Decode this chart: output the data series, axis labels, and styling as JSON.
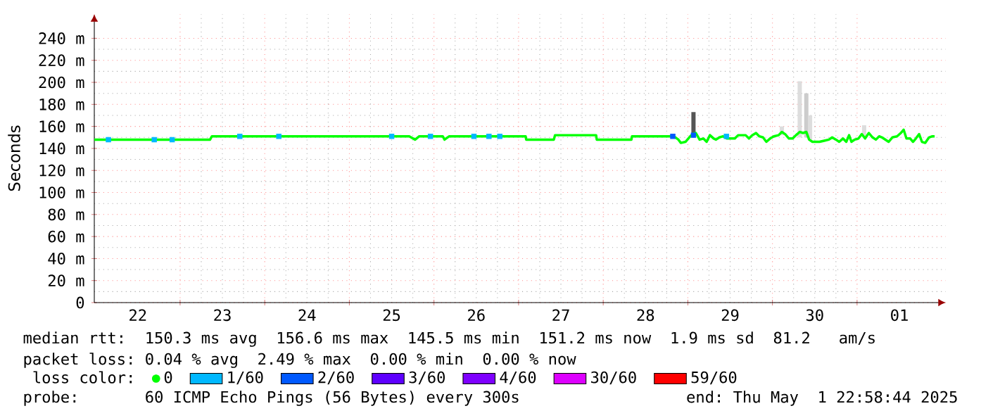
{
  "chart_data": {
    "type": "line",
    "ylabel": "Seconds",
    "legend_title": "loss color:",
    "legend": "bottom",
    "grid": true,
    "xlim": [
      "2025-04-21T23:40",
      "2025-05-02T01:10"
    ],
    "ylim": [
      0,
      262
    ],
    "xticks": [
      {
        "value": "2025-04-22T12:00",
        "label": "22"
      },
      {
        "value": "2025-04-23T12:00",
        "label": "23"
      },
      {
        "value": "2025-04-24T12:00",
        "label": "24"
      },
      {
        "value": "2025-04-25T12:00",
        "label": "25"
      },
      {
        "value": "2025-04-26T12:00",
        "label": "26"
      },
      {
        "value": "2025-04-27T12:00",
        "label": "27"
      },
      {
        "value": "2025-04-28T12:00",
        "label": "28"
      },
      {
        "value": "2025-04-29T12:00",
        "label": "29"
      },
      {
        "value": "2025-04-30T12:00",
        "label": "30"
      },
      {
        "value": "2025-05-01T12:00",
        "label": "01"
      },
      {
        "value": "2025-04-23T00:00",
        "label": null
      },
      {
        "value": "2025-04-24T00:00",
        "label": null
      },
      {
        "value": "2025-04-25T00:00",
        "label": null
      },
      {
        "value": "2025-04-26T00:00",
        "label": null
      },
      {
        "value": "2025-04-27T00:00",
        "label": null
      },
      {
        "value": "2025-04-28T00:00",
        "label": null
      },
      {
        "value": "2025-04-29T00:00",
        "label": null
      },
      {
        "value": "2025-04-30T00:00",
        "label": null
      },
      {
        "value": "2025-05-01T00:00",
        "label": null
      }
    ],
    "yticks": [
      {
        "value": 0,
        "label": "0"
      },
      {
        "value": 20,
        "label": "20 m"
      },
      {
        "value": 40,
        "label": "40 m"
      },
      {
        "value": 60,
        "label": "60 m"
      },
      {
        "value": 80,
        "label": "80 m"
      },
      {
        "value": 100,
        "label": "100 m"
      },
      {
        "value": 120,
        "label": "120 m"
      },
      {
        "value": 140,
        "label": "140 m"
      },
      {
        "value": 160,
        "label": "160 m"
      },
      {
        "value": 180,
        "label": "180 m"
      },
      {
        "value": 200,
        "label": "200 m"
      },
      {
        "value": 220,
        "label": "220 m"
      },
      {
        "value": 240,
        "label": "240 m"
      }
    ],
    "series": [
      {
        "type": "bar",
        "color": "#cccccc",
        "colors": [
          "#555555",
          "#dddddd",
          "#dddddd",
          "#cccccc",
          "#dddddd",
          "#dddddd"
        ],
        "x": [
          "2025-04-29T01:36",
          "2025-04-30T02:40",
          "2025-04-30T07:44",
          "2025-04-30T09:36",
          "2025-04-30T10:40",
          "2025-05-01T02:00"
        ],
        "base": [
          152,
          152,
          150,
          150,
          148,
          151
        ],
        "values": [
          21,
          8,
          51,
          40,
          22,
          10
        ]
      },
      {
        "name": "0",
        "color": "#00ff00",
        "x": [
          "2025-04-21T23:40",
          "2025-04-23T08:30",
          "2025-04-23T09:00",
          "2025-04-25T17:00",
          "2025-04-25T18:40",
          "2025-04-25T19:50",
          "2025-04-26T02:30",
          "2025-04-26T03:00",
          "2025-04-26T04:20",
          "2025-04-27T02:00",
          "2025-04-27T02:10",
          "2025-04-27T10:00",
          "2025-04-27T10:20",
          "2025-04-27T22:00",
          "2025-04-27T22:10",
          "2025-04-28T08:00",
          "2025-04-28T08:10",
          "2025-04-28T20:00",
          "2025-04-28T21:20",
          "2025-04-28T22:00",
          "2025-04-28T23:20",
          "2025-04-29T00:24",
          "2025-04-29T01:20",
          "2025-04-29T02:16",
          "2025-04-29T03:20",
          "2025-04-29T04:24",
          "2025-04-29T05:20",
          "2025-04-29T06:16",
          "2025-04-29T07:20",
          "2025-04-29T08:00",
          "2025-04-29T08:56",
          "2025-04-29T10:00",
          "2025-04-29T11:04",
          "2025-04-29T12:00",
          "2025-04-29T13:20",
          "2025-04-29T14:16",
          "2025-04-29T15:20",
          "2025-04-29T16:24",
          "2025-04-29T17:20",
          "2025-04-29T18:16",
          "2025-04-29T19:20",
          "2025-04-29T20:16",
          "2025-04-29T21:20",
          "2025-04-29T22:16",
          "2025-04-29T23:20",
          "2025-04-30T00:24",
          "2025-04-30T01:44",
          "2025-04-30T02:40",
          "2025-04-30T03:36",
          "2025-04-30T04:40",
          "2025-04-30T05:44",
          "2025-04-30T06:40",
          "2025-04-30T07:44",
          "2025-04-30T08:40",
          "2025-04-30T09:36",
          "2025-04-30T10:24",
          "2025-04-30T11:20",
          "2025-04-30T12:24",
          "2025-04-30T13:20",
          "2025-04-30T14:40",
          "2025-04-30T16:00",
          "2025-04-30T16:56",
          "2025-04-30T18:00",
          "2025-04-30T18:56",
          "2025-04-30T20:00",
          "2025-04-30T20:56",
          "2025-04-30T21:44",
          "2025-04-30T22:24",
          "2025-04-30T23:20",
          "2025-05-01T00:24",
          "2025-05-01T01:20",
          "2025-05-01T02:16",
          "2025-05-01T03:20",
          "2025-05-01T04:24",
          "2025-05-01T05:20",
          "2025-05-01T06:16",
          "2025-05-01T07:04",
          "2025-05-01T08:00",
          "2025-05-01T08:56",
          "2025-05-01T10:00",
          "2025-05-01T11:20",
          "2025-05-01T12:24",
          "2025-05-01T13:12",
          "2025-05-01T14:00",
          "2025-05-01T15:04",
          "2025-05-01T15:52",
          "2025-05-01T16:40",
          "2025-05-01T17:36",
          "2025-05-01T18:24",
          "2025-05-01T19:20",
          "2025-05-01T20:24",
          "2025-05-01T21:20",
          "2025-05-01T22:00"
        ],
        "values": [
          148,
          148,
          151,
          151,
          148,
          151,
          151,
          148,
          151,
          151,
          148,
          148,
          152,
          152,
          148,
          148,
          151,
          151,
          148,
          145,
          146,
          150,
          153,
          154,
          148,
          149,
          146,
          152,
          149,
          148,
          150,
          151,
          149,
          149,
          149,
          152,
          152,
          152,
          149,
          152,
          154,
          151,
          150,
          146,
          149,
          151,
          152,
          155,
          153,
          149,
          149,
          152,
          155,
          154,
          155,
          148,
          146,
          146,
          146,
          147,
          148,
          150,
          148,
          146,
          149,
          146,
          152,
          146,
          148,
          149,
          153,
          149,
          154,
          150,
          148,
          151,
          150,
          148,
          146,
          150,
          151,
          154,
          157,
          149,
          149,
          146,
          149,
          153,
          146,
          145,
          150,
          151,
          151
        ]
      },
      {
        "name": "1/60",
        "type": "scatter",
        "marker": "square",
        "color": "#00b8ff",
        "x": [
          "2025-04-22T03:40",
          "2025-04-22T16:40",
          "2025-04-22T21:45",
          "2025-04-23T16:56",
          "2025-04-24T04:00",
          "2025-04-25T12:00",
          "2025-04-25T23:00",
          "2025-04-26T11:20",
          "2025-04-26T15:36",
          "2025-04-26T18:40",
          "2025-04-29T10:56"
        ],
        "values": [
          148,
          148,
          148,
          151,
          151,
          151,
          151,
          151,
          151,
          151,
          151
        ]
      },
      {
        "name": "2/60",
        "type": "scatter",
        "marker": "square",
        "color": "#0059ff",
        "x": [
          "2025-04-28T19:44",
          "2025-04-29T01:36"
        ],
        "values": [
          151,
          152
        ]
      },
      {
        "name": "3/60",
        "type": "scatter",
        "marker": "square",
        "color": "#5e00ff"
      },
      {
        "name": "4/60",
        "type": "scatter",
        "marker": "square",
        "color": "#7e00ff"
      },
      {
        "name": "30/60",
        "type": "scatter",
        "marker": "square",
        "color": "#dd00ff"
      },
      {
        "name": "59/60",
        "type": "scatter",
        "marker": "square",
        "color": "#ff0000"
      }
    ],
    "annotations": [
      "median rtt:  150.3 ms avg  156.6 ms max  145.5 ms min  151.2 ms now  1.9 ms sd  81.2   am/s",
      "packet loss: 0.04 % avg  2.49 % max  0.00 % min  0.00 % now",
      "probe:       60 ICMP Echo Pings (56 Bytes) every 300s",
      "end: Thu May  1 22:58:44 2025"
    ]
  }
}
